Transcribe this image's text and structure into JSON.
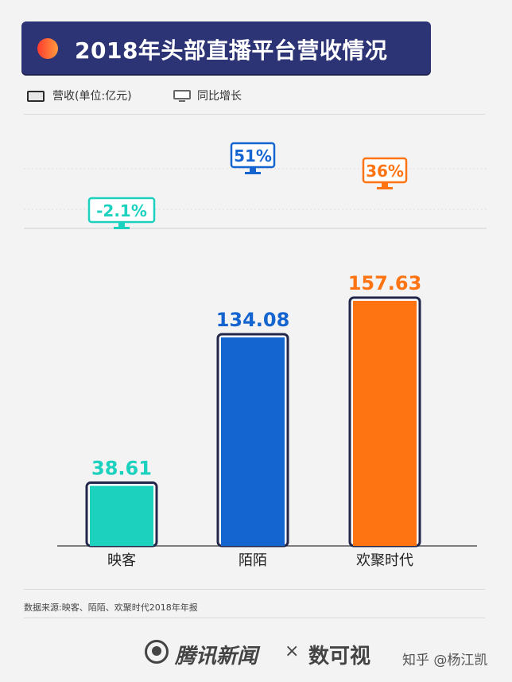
{
  "header": {
    "title": "2018年头部直播平台营收情况"
  },
  "legend": {
    "revenue_label": "营收(单位:亿元)",
    "growth_label": "同比增长"
  },
  "chart_data": {
    "type": "bar",
    "title": "2018年头部直播平台营收情况",
    "categories": [
      "映客",
      "陌陌",
      "欢聚时代"
    ],
    "series": [
      {
        "name": "营收(单位:亿元)",
        "values": [
          38.61,
          134.08,
          157.63
        ],
        "labels": [
          "38.61",
          "134.08",
          "157.63"
        ]
      },
      {
        "name": "同比增长",
        "values": [
          -2.1,
          51,
          36
        ],
        "labels": [
          "-2.1%",
          "51%",
          "36%"
        ]
      }
    ],
    "colors": [
      "#1dd1bf",
      "#1565d0",
      "#ff7412"
    ],
    "border_color": "#22264a",
    "ylim": [
      0,
      170
    ]
  },
  "footer": {
    "source": "数据来源:映客、陌陌、欢聚时代2018年年报",
    "brand": "腾讯新闻",
    "separator": "×",
    "partner": "数可视",
    "credit": "知乎 @杨江凯"
  }
}
